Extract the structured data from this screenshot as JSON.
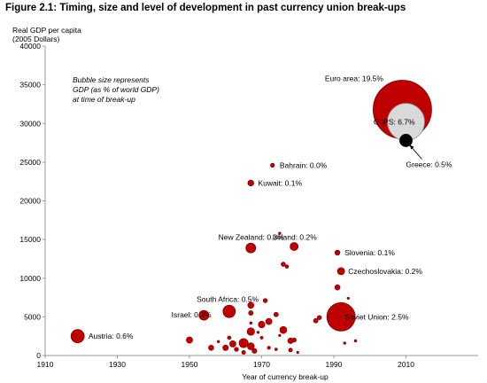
{
  "figure_title": "Figure 2.1: Timing, size and level of development in past currency union break-ups",
  "chart_data": {
    "type": "scatter",
    "subtype": "bubble",
    "ylabel_lines": [
      "Real GDP per capita",
      "(2005 Dollars)"
    ],
    "xlabel": "Year of currency break-up",
    "xlim": [
      1910,
      2030
    ],
    "ylim": [
      0,
      40000
    ],
    "xticks": [
      "1910",
      "1930",
      "1950",
      "1970",
      "1990",
      "2010"
    ],
    "yticks": [
      "0",
      "5000",
      "10000",
      "15000",
      "20000",
      "25000",
      "30000",
      "35000",
      "40000"
    ],
    "grid": false,
    "annotation_lines": [
      "Bubble size represents",
      "GDP (as % of world GDP)",
      "at time of break-up"
    ],
    "colors": {
      "bubble": "#c00000",
      "bubble_edge": "#7a0000",
      "giips": "#d9d9d9",
      "greece": "#000000",
      "axis": "#999999"
    },
    "labeled_points": [
      {
        "label": "Euro area: 19.5%",
        "x": 2009,
        "y": 31800,
        "r": 33,
        "fill": "bubble",
        "lx": 1987.5,
        "ly": 35800,
        "anchor": "start"
      },
      {
        "label": "GIIPS: 6.7%",
        "x": 2010,
        "y": 30200,
        "r": 21,
        "fill": "giips",
        "lx": 2001,
        "ly": 30200,
        "anchor": "start"
      },
      {
        "label": "Greece: 0.5%",
        "x": 2010,
        "y": 27800,
        "r": 7,
        "fill": "greece",
        "lx": 2010,
        "ly": 24700,
        "anchor": "start"
      },
      {
        "label": "Soviet Union: 2.5%",
        "x": 1992,
        "y": 5000,
        "r": 16,
        "fill": "bubble",
        "lx": 1993,
        "ly": 5000,
        "anchor": "start"
      },
      {
        "label": "Austria: 0.6%",
        "x": 1919,
        "y": 2500,
        "r": 7.5,
        "fill": "bubble",
        "lx": 1922,
        "ly": 2500,
        "anchor": "start"
      },
      {
        "label": "Israel: 0.3%",
        "x": 1954,
        "y": 5200,
        "r": 5.5,
        "fill": "bubble",
        "lx": 1945,
        "ly": 5300,
        "anchor": "start"
      },
      {
        "label": "South Africa: 0.5%",
        "x": 1961,
        "y": 5700,
        "r": 7,
        "fill": "bubble",
        "lx": 1952,
        "ly": 7300,
        "anchor": "start"
      },
      {
        "label": "New Zealand: 0.3%",
        "x": 1967,
        "y": 13900,
        "r": 5.5,
        "fill": "bubble",
        "lx": 1958,
        "ly": 15300,
        "anchor": "start"
      },
      {
        "label": "Ireland: 0.2%",
        "x": 1979,
        "y": 14100,
        "r": 4.5,
        "fill": "bubble",
        "lx": 1973,
        "ly": 15300,
        "anchor": "start"
      },
      {
        "label": "Bahrain: 0.0%",
        "x": 1973,
        "y": 24600,
        "r": 2.2,
        "fill": "bubble",
        "lx": 1975,
        "ly": 24600,
        "anchor": "start"
      },
      {
        "label": "Kuwait: 0.1%",
        "x": 1967,
        "y": 22300,
        "r": 3.3,
        "fill": "bubble",
        "lx": 1969,
        "ly": 22300,
        "anchor": "start"
      },
      {
        "label": "Slovenia: 0.1%",
        "x": 1991,
        "y": 13300,
        "r": 2.8,
        "fill": "bubble",
        "lx": 1993,
        "ly": 13300,
        "anchor": "start"
      },
      {
        "label": "Czechoslovakia: 0.2%",
        "x": 1992,
        "y": 10900,
        "r": 4,
        "fill": "bubble",
        "lx": 1994,
        "ly": 10900,
        "anchor": "start"
      }
    ],
    "other_points": [
      {
        "x": 1975,
        "y": 15800,
        "r": 1.4
      },
      {
        "x": 1976,
        "y": 11800,
        "r": 2.5
      },
      {
        "x": 1977,
        "y": 11500,
        "r": 2
      },
      {
        "x": 1991,
        "y": 8800,
        "r": 3
      },
      {
        "x": 1971,
        "y": 7100,
        "r": 2.4
      },
      {
        "x": 1967,
        "y": 6500,
        "r": 3.5
      },
      {
        "x": 1967,
        "y": 5500,
        "r": 2.6
      },
      {
        "x": 1994,
        "y": 7400,
        "r": 1.3
      },
      {
        "x": 1974,
        "y": 5300,
        "r": 2.6
      },
      {
        "x": 1972,
        "y": 4400,
        "r": 3.6
      },
      {
        "x": 1970,
        "y": 4000,
        "r": 3.8
      },
      {
        "x": 1967,
        "y": 3100,
        "r": 4.3
      },
      {
        "x": 1976,
        "y": 3300,
        "r": 4
      },
      {
        "x": 1978,
        "y": 1900,
        "r": 3.2
      },
      {
        "x": 1979,
        "y": 2000,
        "r": 2.4
      },
      {
        "x": 1965,
        "y": 1600,
        "r": 5.2
      },
      {
        "x": 1967,
        "y": 1200,
        "r": 4
      },
      {
        "x": 1962,
        "y": 1500,
        "r": 3.6
      },
      {
        "x": 1960,
        "y": 1000,
        "r": 3.2
      },
      {
        "x": 1956,
        "y": 1000,
        "r": 3
      },
      {
        "x": 1950,
        "y": 2000,
        "r": 3.6
      },
      {
        "x": 1963,
        "y": 800,
        "r": 2.4
      },
      {
        "x": 1968,
        "y": 600,
        "r": 2.8
      },
      {
        "x": 1965,
        "y": 400,
        "r": 2.2
      },
      {
        "x": 1972,
        "y": 1000,
        "r": 1.8
      },
      {
        "x": 1974,
        "y": 800,
        "r": 1.5
      },
      {
        "x": 1978,
        "y": 700,
        "r": 2.2
      },
      {
        "x": 1980,
        "y": 400,
        "r": 1.3
      },
      {
        "x": 1985,
        "y": 4500,
        "r": 2.6
      },
      {
        "x": 1986,
        "y": 4900,
        "r": 2.4
      },
      {
        "x": 1993,
        "y": 1600,
        "r": 1.4
      },
      {
        "x": 1996,
        "y": 1900,
        "r": 1.4
      },
      {
        "x": 1970,
        "y": 2300,
        "r": 1.6
      },
      {
        "x": 1958,
        "y": 1800,
        "r": 1.4
      },
      {
        "x": 1961,
        "y": 2300,
        "r": 2
      },
      {
        "x": 1969,
        "y": 3000,
        "r": 1.3
      },
      {
        "x": 1975,
        "y": 2600,
        "r": 1.3
      },
      {
        "x": 1967,
        "y": 4200,
        "r": 1.4
      }
    ]
  }
}
